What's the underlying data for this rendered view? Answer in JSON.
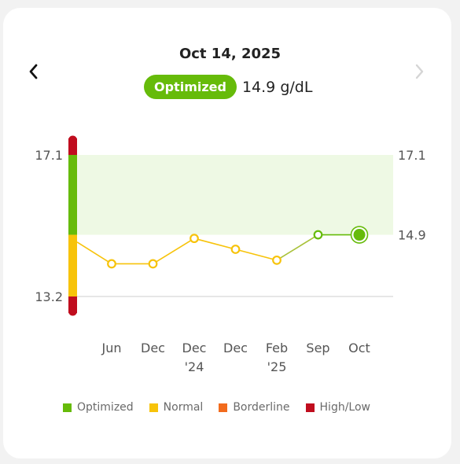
{
  "header": {
    "date": "Oct 14, 2025",
    "status": "Optimized",
    "value": "14.9 g/dL",
    "prev_icon": "chevron-left-icon",
    "next_icon": "chevron-right-icon"
  },
  "colors": {
    "optimized": "#66bb0a",
    "normal": "#f7c30a",
    "borderline": "#f26b1d",
    "high_low": "#c00d1e",
    "optimal_band": "#eef9e4",
    "line": "#a9c23a",
    "grid": "#dddddd"
  },
  "legend": [
    {
      "label": "Optimized",
      "color": "#66bb0a"
    },
    {
      "label": "Normal",
      "color": "#f7c30a"
    },
    {
      "label": "Borderline",
      "color": "#f26b1d"
    },
    {
      "label": "High/Low",
      "color": "#c00d1e"
    }
  ],
  "chart_data": {
    "type": "line",
    "x_labels": [
      {
        "line1": "Jun",
        "line2": ""
      },
      {
        "line1": "Dec",
        "line2": ""
      },
      {
        "line1": "Dec",
        "line2": "'24"
      },
      {
        "line1": "Dec",
        "line2": ""
      },
      {
        "line1": "Feb",
        "line2": "'25"
      },
      {
        "line1": "Sep",
        "line2": ""
      },
      {
        "line1": "Oct",
        "line2": ""
      }
    ],
    "values": [
      14.1,
      14.1,
      14.8,
      14.5,
      14.2,
      14.9,
      14.9
    ],
    "leading_value": 14.7,
    "ylim": [
      13.2,
      17.1
    ],
    "y_ticks_left": [
      "17.1",
      "13.2"
    ],
    "y_ticks_right": [
      "17.1",
      "14.9"
    ],
    "optimal_range": [
      14.9,
      17.1
    ],
    "normal_range": [
      13.2,
      14.9
    ],
    "selected_index": 6
  }
}
